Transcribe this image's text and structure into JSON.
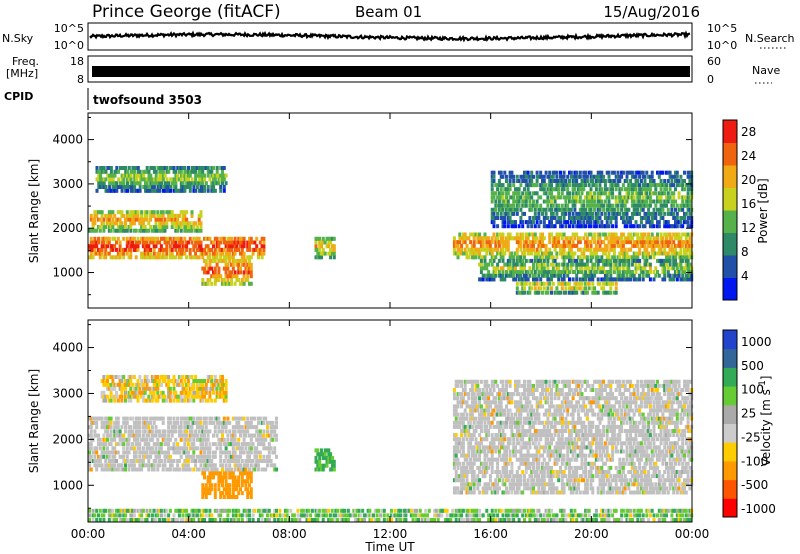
{
  "header": {
    "station": "Prince George (fitACF)",
    "beam": "Beam 01",
    "date": "15/Aug/2016"
  },
  "strip": {
    "nsky_label": "N.Sky",
    "nsky_ticks": [
      "10^5",
      "10^0"
    ],
    "nsearch_label": "N.Search",
    "nsearch_ticks": [
      "10^5",
      "10^0"
    ],
    "freq_label": "Freq.",
    "freq_unit": "[MHz]",
    "freq_ticks": [
      "18",
      "8"
    ],
    "nave_label": "Nave",
    "nave_ticks": [
      "60",
      "0"
    ],
    "cpid_label": "CPID",
    "cpid_value": "twofsound 3503"
  },
  "colors": {
    "power_scale": [
      "#0018f0",
      "#2050a8",
      "#2e8a66",
      "#55b24a",
      "#c8d21e",
      "#f0aa16",
      "#f06410",
      "#ee1c10"
    ],
    "velocity_scale": [
      "#ff0000",
      "#ff5500",
      "#ff9900",
      "#ffcc00",
      "#cccccc",
      "#aaaaaa",
      "#66cc33",
      "#33aa55",
      "#336699",
      "#2244cc"
    ],
    "ground_scatter": "#c0c0c0"
  },
  "chart_data": [
    {
      "type": "heatmap",
      "name": "power",
      "xlabel": "Time UT",
      "ylabel": "Slant Range [km]",
      "xlim": [
        0,
        24
      ],
      "ylim": [
        200,
        4600
      ],
      "x_ticks": [
        "00:00",
        "04:00",
        "08:00",
        "12:00",
        "16:00",
        "20:00",
        "00:00"
      ],
      "y_ticks": [
        1000,
        2000,
        3000,
        4000
      ],
      "colorbar": {
        "label": "Power [dB]",
        "ticks": [
          4,
          8,
          12,
          16,
          20,
          24,
          28
        ],
        "range": [
          0,
          30
        ]
      },
      "echo_bands": [
        {
          "t0": 0.0,
          "t1": 7.0,
          "r0": 1300,
          "r1": 1800,
          "power": 26
        },
        {
          "t0": 0.0,
          "t1": 4.5,
          "r0": 1900,
          "r1": 2400,
          "power": 20
        },
        {
          "t0": 0.3,
          "t1": 5.5,
          "r0": 2800,
          "r1": 3400,
          "power": 14
        },
        {
          "t0": 4.5,
          "t1": 6.5,
          "r0": 700,
          "r1": 1300,
          "power": 24
        },
        {
          "t0": 9.0,
          "t1": 9.8,
          "r0": 1300,
          "r1": 1800,
          "power": 18
        },
        {
          "t0": 14.5,
          "t1": 24.0,
          "r0": 1300,
          "r1": 1900,
          "power": 22
        },
        {
          "t0": 15.5,
          "t1": 24.0,
          "r0": 800,
          "r1": 1300,
          "power": 14
        },
        {
          "t0": 16.0,
          "t1": 24.0,
          "r0": 2000,
          "r1": 3300,
          "power": 12
        },
        {
          "t0": 17.0,
          "t1": 21.0,
          "r0": 500,
          "r1": 800,
          "power": 18
        }
      ]
    },
    {
      "type": "heatmap",
      "name": "velocity",
      "xlabel": "Time UT",
      "ylabel": "Slant Range [km]",
      "xlim": [
        0,
        24
      ],
      "ylim": [
        200,
        4600
      ],
      "x_ticks": [
        "00:00",
        "04:00",
        "08:00",
        "12:00",
        "16:00",
        "20:00",
        "00:00"
      ],
      "y_ticks": [
        1000,
        2000,
        3000,
        4000
      ],
      "colorbar": {
        "label": "Velocity [m s^-1]",
        "ticks": [
          "1000",
          "500",
          "100",
          "25",
          "-25",
          "-100",
          "-500",
          "-1000"
        ]
      },
      "echo_bands": [
        {
          "t0": 0.0,
          "t1": 7.5,
          "r0": 1300,
          "r1": 2500,
          "velocity": 0,
          "ground": true
        },
        {
          "t0": 0.5,
          "t1": 5.5,
          "r0": 2800,
          "r1": 3400,
          "velocity": -50
        },
        {
          "t0": 4.5,
          "t1": 6.5,
          "r0": 700,
          "r1": 1300,
          "velocity": -400
        },
        {
          "t0": 9.0,
          "t1": 9.8,
          "r0": 1300,
          "r1": 1800,
          "velocity": 150
        },
        {
          "t0": 14.5,
          "t1": 24.0,
          "r0": 800,
          "r1": 3300,
          "velocity": 0,
          "ground": true
        },
        {
          "t0": 0.0,
          "t1": 24.0,
          "r0": 200,
          "r1": 500,
          "velocity": 60
        }
      ]
    }
  ]
}
